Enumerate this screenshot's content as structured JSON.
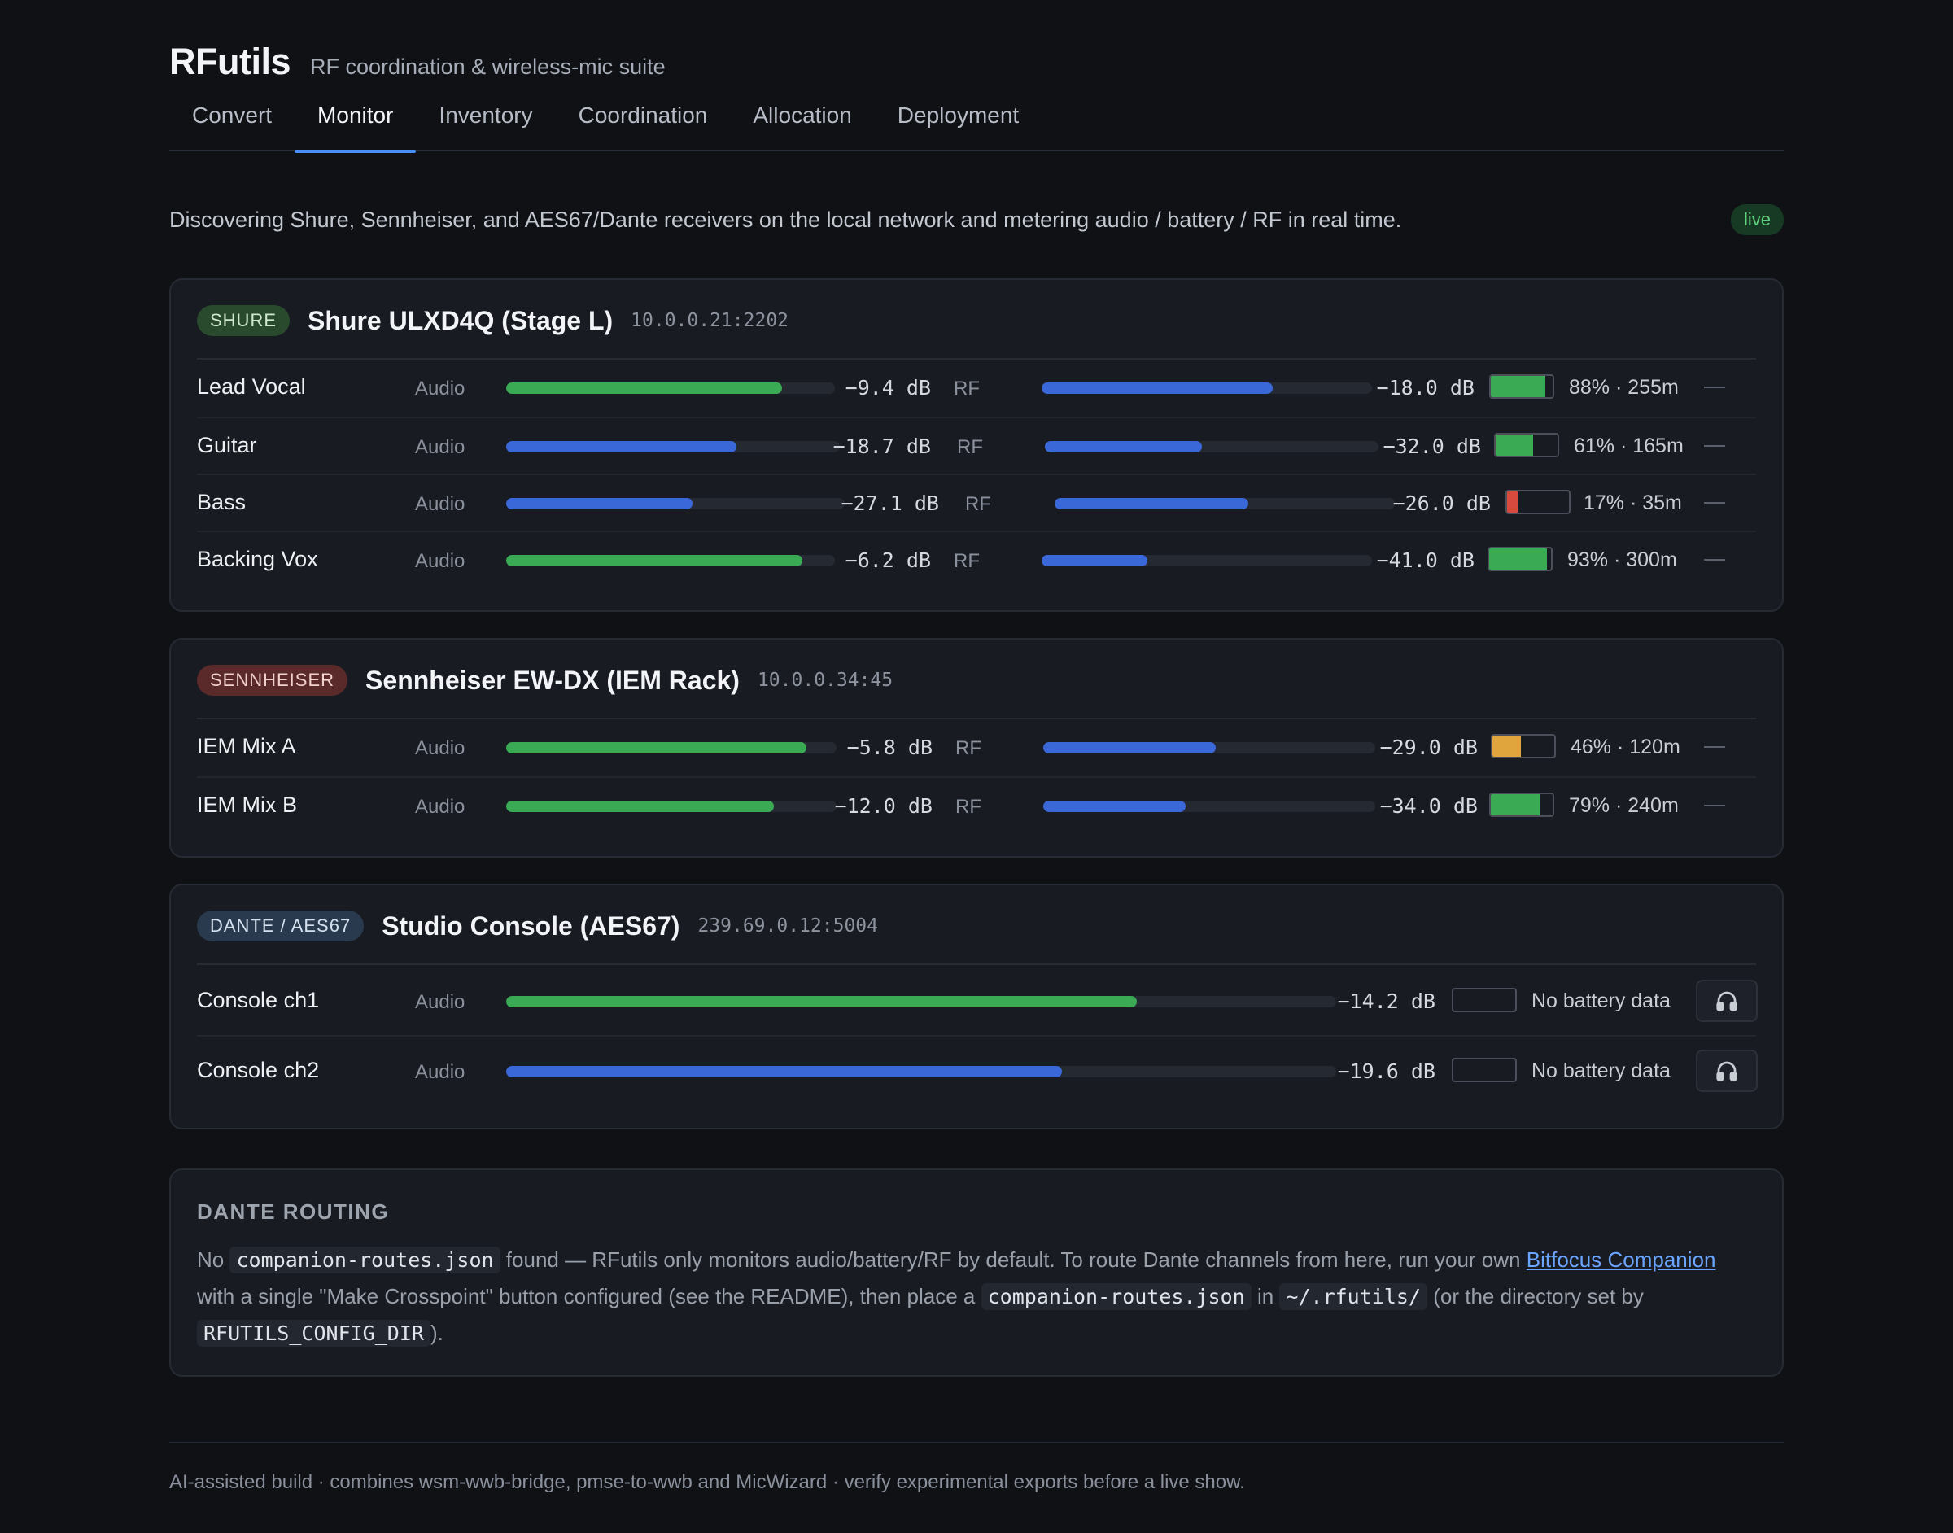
{
  "app": {
    "title": "RFutils",
    "subtitle": "RF coordination & wireless-mic suite"
  },
  "tabs": [
    {
      "label": "Convert",
      "active": false
    },
    {
      "label": "Monitor",
      "active": true
    },
    {
      "label": "Inventory",
      "active": false
    },
    {
      "label": "Coordination",
      "active": false
    },
    {
      "label": "Allocation",
      "active": false
    },
    {
      "label": "Deployment",
      "active": false
    }
  ],
  "intro": {
    "text": "Discovering Shure, Sennheiser, and AES67/Dante receivers on the local network and metering audio / battery / RF in real time.",
    "status": "live"
  },
  "labels": {
    "audio": "Audio",
    "rf": "RF"
  },
  "devices": [
    {
      "vendor": "SHURE",
      "name": "Shure ULXD4Q (Stage L)",
      "address": "10.0.0.21:2202",
      "channels": [
        {
          "name": "Lead Vocal",
          "audio_db": "−9.4 dB",
          "audio_level": 0.84,
          "audio_color": "green",
          "rf_db": "−18.0 dB",
          "rf_level": 0.7,
          "battery_pct": 0.88,
          "battery_color": "green",
          "battery_text": "88% · 255m"
        },
        {
          "name": "Guitar",
          "audio_db": "−18.7 dB",
          "audio_level": 0.69,
          "audio_color": "blue",
          "rf_db": "−32.0 dB",
          "rf_level": 0.47,
          "battery_pct": 0.61,
          "battery_color": "green",
          "battery_text": "61% · 165m"
        },
        {
          "name": "Bass",
          "audio_db": "−27.1 dB",
          "audio_level": 0.55,
          "audio_color": "blue",
          "rf_db": "−26.0 dB",
          "rf_level": 0.57,
          "battery_pct": 0.17,
          "battery_color": "red",
          "battery_text": "17% · 35m"
        },
        {
          "name": "Backing Vox",
          "audio_db": "−6.2 dB",
          "audio_level": 0.9,
          "audio_color": "green",
          "rf_db": "−41.0 dB",
          "rf_level": 0.32,
          "battery_pct": 0.93,
          "battery_color": "green",
          "battery_text": "93% · 300m"
        }
      ]
    },
    {
      "vendor": "SENNHEISER",
      "name": "Sennheiser EW-DX (IEM Rack)",
      "address": "10.0.0.34:45",
      "channels": [
        {
          "name": "IEM Mix A",
          "audio_db": "−5.8 dB",
          "audio_level": 0.91,
          "audio_color": "green",
          "rf_db": "−29.0 dB",
          "rf_level": 0.52,
          "battery_pct": 0.46,
          "battery_color": "orange",
          "battery_text": "46% · 120m"
        },
        {
          "name": "IEM Mix B",
          "audio_db": "−12.0 dB",
          "audio_level": 0.81,
          "audio_color": "green",
          "rf_db": "−34.0 dB",
          "rf_level": 0.43,
          "battery_pct": 0.79,
          "battery_color": "green",
          "battery_text": "79% · 240m"
        }
      ]
    },
    {
      "vendor": "DANTE / AES67",
      "name": "Studio Console (AES67)",
      "address": "239.69.0.12:5004",
      "channels": [
        {
          "name": "Console ch1",
          "audio_db": "−14.2 dB",
          "audio_level": 0.76,
          "audio_color": "green",
          "battery_text": "No battery data"
        },
        {
          "name": "Console ch2",
          "audio_db": "−19.6 dB",
          "audio_level": 0.67,
          "audio_color": "blue",
          "battery_text": "No battery data"
        }
      ]
    }
  ],
  "routing": {
    "title": "DANTE ROUTING",
    "t1": "No",
    "code1": "companion-routes.json",
    "t2": "found — RFutils only monitors audio/battery/RF by default. To route Dante channels from here, run your own",
    "link": "Bitfocus Companion",
    "t3": "with a single \"Make Crosspoint\" button configured (see the README), then place a",
    "code2": "companion-routes.json",
    "t4": "in",
    "code3": "~/.rfutils/",
    "t5": "(or the directory set by",
    "code4": "RFUTILS_CONFIG_DIR",
    "t6": ")."
  },
  "footer": "AI-assisted build · combines wsm-wwb-bridge, pmse-to-wwb and MicWizard · verify experimental exports before a live show.",
  "icons": {
    "headphones": "headphones-icon",
    "dash": "dash-icon"
  },
  "colors": {
    "accent": "#4c8ef7",
    "green": "#3aaa55",
    "blue": "#3b68d9",
    "orange": "#e0a53c",
    "red": "#d94a3e"
  }
}
